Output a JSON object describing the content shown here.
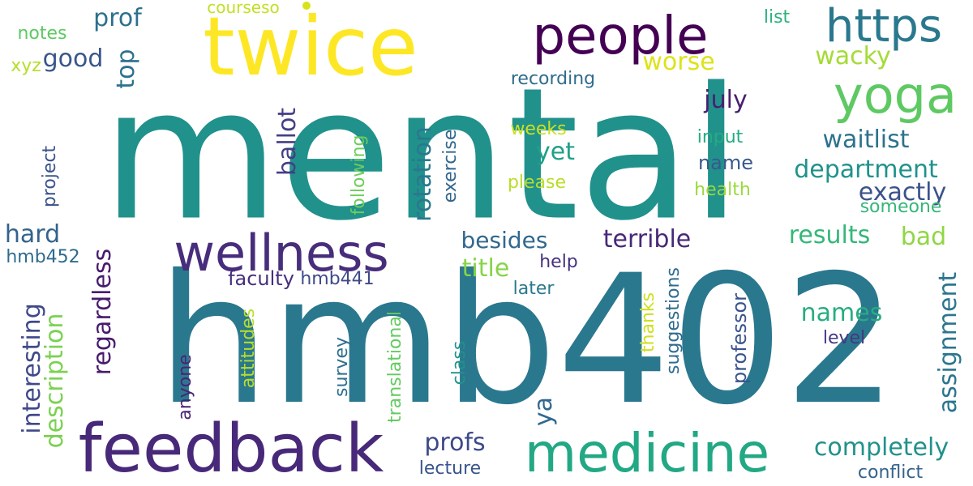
{
  "words": [
    {
      "text": "mental",
      "color": "#21918c"
    },
    {
      "text": "hmb402",
      "color": "#2a788e"
    },
    {
      "text": "twice",
      "color": "#fde725"
    },
    {
      "text": "feedback",
      "color": "#482979"
    },
    {
      "text": "medicine",
      "color": "#22a884"
    },
    {
      "text": "people",
      "color": "#440154"
    },
    {
      "text": "wellness",
      "color": "#472d7b"
    },
    {
      "text": "yoga",
      "color": "#5ec962"
    },
    {
      "text": "https",
      "color": "#2a788e"
    },
    {
      "text": "department",
      "color": "#20928c"
    },
    {
      "text": "exactly",
      "color": "#3b528b"
    },
    {
      "text": "waitlist",
      "color": "#2c728e"
    },
    {
      "text": "completely",
      "color": "#21918c"
    },
    {
      "text": "terrible",
      "color": "#482878"
    },
    {
      "text": "besides",
      "color": "#31688e"
    },
    {
      "text": "results",
      "color": "#35b779"
    },
    {
      "text": "names",
      "color": "#27ad81"
    },
    {
      "text": "title",
      "color": "#86d549"
    },
    {
      "text": "profs",
      "color": "#3e4989"
    },
    {
      "text": "july",
      "color": "#481f70"
    },
    {
      "text": "yet",
      "color": "#1fa088"
    },
    {
      "text": "worse",
      "color": "#dde318"
    },
    {
      "text": "wacky",
      "color": "#a5db36"
    },
    {
      "text": "bad",
      "color": "#8fd744"
    },
    {
      "text": "hard",
      "color": "#33638d"
    },
    {
      "text": "good",
      "color": "#39568c"
    },
    {
      "text": "prof",
      "color": "#2d708e"
    },
    {
      "text": "notes",
      "color": "#5ec962"
    },
    {
      "text": "xyz",
      "color": "#b5de2b"
    },
    {
      "text": "courseso",
      "color": "#c2df23"
    },
    {
      "text": "list",
      "color": "#2db27d"
    },
    {
      "text": "recording",
      "color": "#2f6c8e"
    },
    {
      "text": "weeks",
      "color": "#cae11f"
    },
    {
      "text": "please",
      "color": "#b8de29"
    },
    {
      "text": "input",
      "color": "#25ac82"
    },
    {
      "text": "name",
      "color": "#38598c"
    },
    {
      "text": "health",
      "color": "#9bd93c"
    },
    {
      "text": "someone",
      "color": "#35b779"
    },
    {
      "text": "faculty",
      "color": "#472f7d"
    },
    {
      "text": "hmb441",
      "color": "#3e4a89"
    },
    {
      "text": "hmb452",
      "color": "#2f6b8e"
    },
    {
      "text": "help",
      "color": "#46327e"
    },
    {
      "text": "later",
      "color": "#2a788e"
    },
    {
      "text": "level",
      "color": "#453882"
    },
    {
      "text": "lecture",
      "color": "#39558c"
    },
    {
      "text": "conflict",
      "color": "#33638d"
    },
    {
      "text": "ya",
      "color": "#31688e"
    },
    {
      "text": "ballot",
      "color": "#433e85"
    },
    {
      "text": "rotation",
      "color": "#2a788e"
    },
    {
      "text": "top",
      "color": "#2c718e"
    },
    {
      "text": "regardless",
      "color": "#481b6d"
    },
    {
      "text": "interesting",
      "color": "#3f4889"
    },
    {
      "text": "description",
      "color": "#7ad151"
    },
    {
      "text": "project",
      "color": "#3b528b"
    },
    {
      "text": "following",
      "color": "#6ccd5a"
    },
    {
      "text": "exercise",
      "color": "#31668e"
    },
    {
      "text": "assignment",
      "color": "#2b758e"
    },
    {
      "text": "professor",
      "color": "#3a548c"
    },
    {
      "text": "suggestions",
      "color": "#2f6b8e"
    },
    {
      "text": "thanks",
      "color": "#cde11d"
    },
    {
      "text": "class",
      "color": "#21918c"
    },
    {
      "text": "translational",
      "color": "#63cb5f"
    },
    {
      "text": "survey",
      "color": "#2e6f8e"
    },
    {
      "text": "attitudes",
      "color": "#b8de29"
    },
    {
      "text": "anyone",
      "color": "#482475"
    }
  ],
  "dot_color": "#d8e219"
}
